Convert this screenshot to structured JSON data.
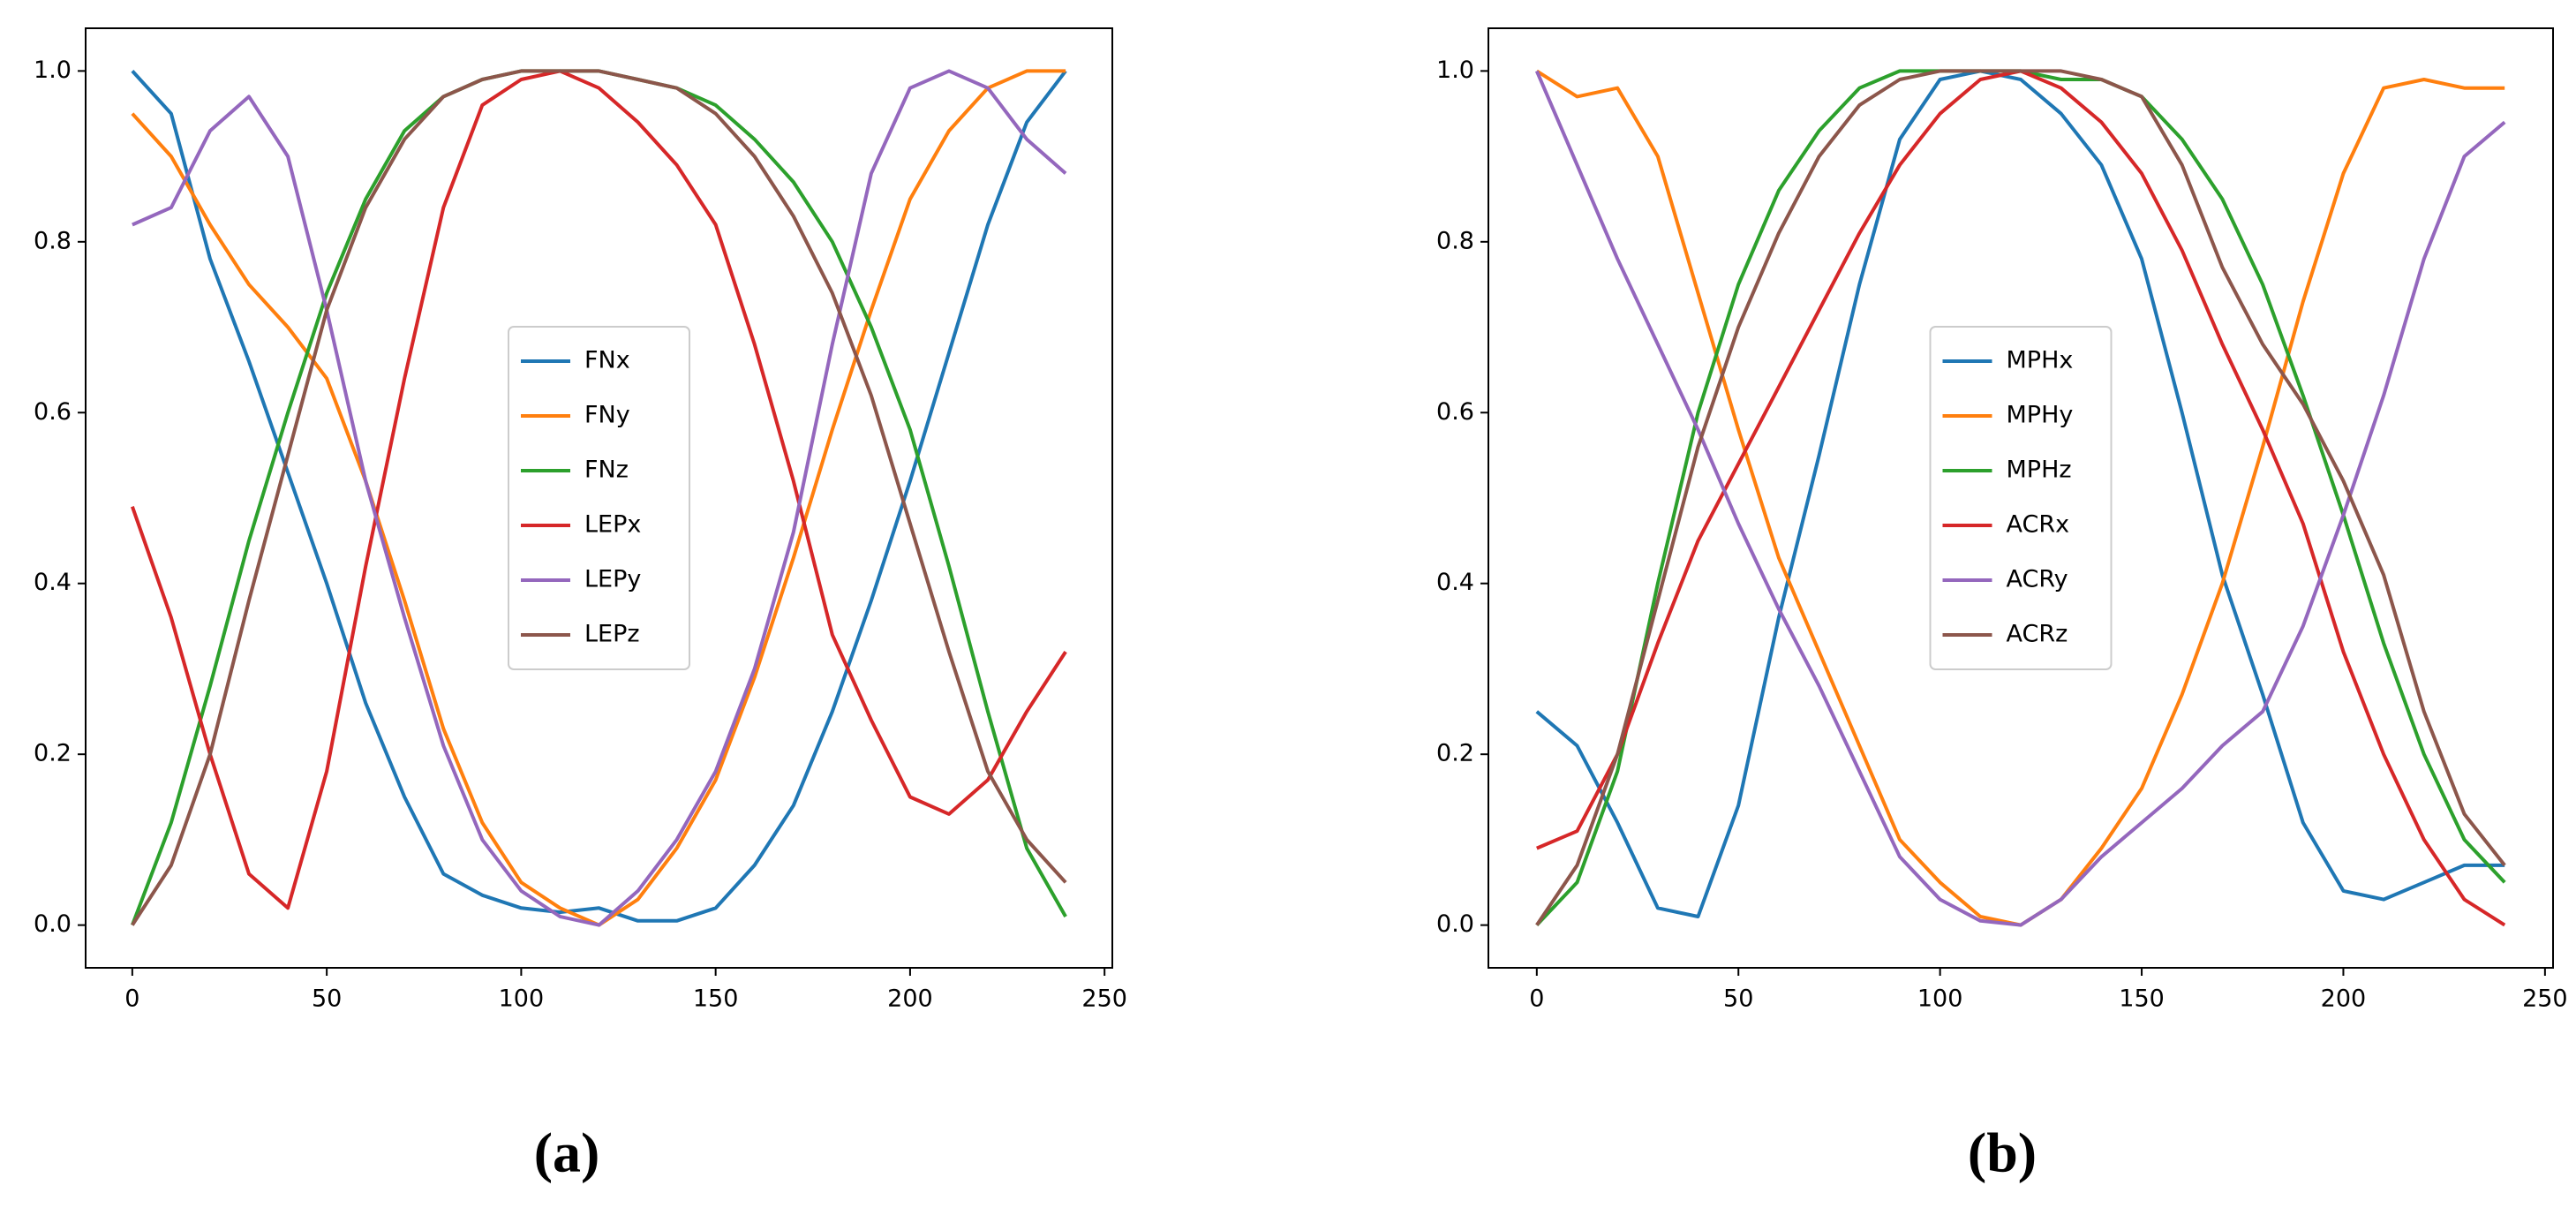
{
  "chart_data": [
    {
      "type": "line",
      "label": "(a)",
      "legend": "center",
      "x": [
        0,
        10,
        20,
        30,
        40,
        50,
        60,
        70,
        80,
        90,
        100,
        110,
        120,
        130,
        140,
        150,
        160,
        170,
        180,
        190,
        200,
        210,
        220,
        230,
        240
      ],
      "xlim": [
        -12,
        252
      ],
      "ylim": [
        -0.05,
        1.05
      ],
      "xticks": [
        0,
        50,
        100,
        150,
        200,
        250
      ],
      "yticks": [
        {
          "value": 0,
          "label": "0.0"
        },
        0.2,
        0.4,
        0.6,
        0.8,
        {
          "value": 1,
          "label": "1.0"
        }
      ],
      "series": [
        {
          "name": "FNx",
          "color": "#1f77b4",
          "values": [
            1.0,
            0.95,
            0.78,
            0.66,
            0.53,
            0.4,
            0.26,
            0.15,
            0.06,
            0.035,
            0.02,
            0.015,
            0.02,
            0.005,
            0.005,
            0.02,
            0.07,
            0.14,
            0.25,
            0.38,
            0.52,
            0.67,
            0.82,
            0.94,
            1.0
          ]
        },
        {
          "name": "FNy",
          "color": "#ff7f0e",
          "values": [
            0.95,
            0.9,
            0.82,
            0.75,
            0.7,
            0.64,
            0.52,
            0.38,
            0.23,
            0.12,
            0.05,
            0.02,
            0.0,
            0.03,
            0.09,
            0.17,
            0.29,
            0.43,
            0.58,
            0.72,
            0.85,
            0.93,
            0.98,
            1.0,
            1.0
          ]
        },
        {
          "name": "FNz",
          "color": "#2ca02c",
          "values": [
            0,
            0.12,
            0.28,
            0.45,
            0.6,
            0.74,
            0.85,
            0.93,
            0.97,
            0.99,
            1.0,
            1.0,
            1.0,
            0.99,
            0.98,
            0.96,
            0.92,
            0.87,
            0.8,
            0.7,
            0.58,
            0.42,
            0.25,
            0.09,
            0.01
          ]
        },
        {
          "name": "LEPx",
          "color": "#d62728",
          "values": [
            0.49,
            0.36,
            0.2,
            0.06,
            0.02,
            0.18,
            0.42,
            0.64,
            0.84,
            0.96,
            0.99,
            1.0,
            0.98,
            0.94,
            0.89,
            0.82,
            0.68,
            0.52,
            0.34,
            0.24,
            0.15,
            0.13,
            0.17,
            0.25,
            0.32
          ]
        },
        {
          "name": "LEPy",
          "color": "#9467bd",
          "values": [
            0.82,
            0.84,
            0.93,
            0.97,
            0.9,
            0.72,
            0.52,
            0.36,
            0.21,
            0.1,
            0.04,
            0.01,
            0.0,
            0.04,
            0.1,
            0.18,
            0.3,
            0.46,
            0.68,
            0.88,
            0.98,
            1.0,
            0.98,
            0.92,
            0.88
          ]
        },
        {
          "name": "LEPz",
          "color": "#8c564b",
          "values": [
            0,
            0.07,
            0.2,
            0.38,
            0.55,
            0.72,
            0.84,
            0.92,
            0.97,
            0.99,
            1.0,
            1.0,
            1.0,
            0.99,
            0.98,
            0.95,
            0.9,
            0.83,
            0.74,
            0.62,
            0.47,
            0.32,
            0.18,
            0.1,
            0.05
          ]
        }
      ]
    },
    {
      "type": "line",
      "label": "(b)",
      "legend": "center",
      "x": [
        0,
        10,
        20,
        30,
        40,
        50,
        60,
        70,
        80,
        90,
        100,
        110,
        120,
        130,
        140,
        150,
        160,
        170,
        180,
        190,
        200,
        210,
        220,
        230,
        240
      ],
      "xlim": [
        -12,
        252
      ],
      "ylim": [
        -0.05,
        1.05
      ],
      "xticks": [
        0,
        50,
        100,
        150,
        200,
        250
      ],
      "yticks": [
        {
          "value": 0,
          "label": "0.0"
        },
        0.2,
        0.4,
        0.6,
        0.8,
        {
          "value": 1,
          "label": "1.0"
        }
      ],
      "series": [
        {
          "name": "MPHx",
          "color": "#1f77b4",
          "values": [
            0.25,
            0.21,
            0.12,
            0.02,
            0.01,
            0.14,
            0.36,
            0.55,
            0.75,
            0.92,
            0.99,
            1.0,
            0.99,
            0.95,
            0.89,
            0.78,
            0.6,
            0.41,
            0.27,
            0.12,
            0.04,
            0.03,
            0.05,
            0.07,
            0.07
          ]
        },
        {
          "name": "MPHy",
          "color": "#ff7f0e",
          "values": [
            1.0,
            0.97,
            0.98,
            0.9,
            0.74,
            0.58,
            0.43,
            0.32,
            0.21,
            0.1,
            0.05,
            0.01,
            0.0,
            0.03,
            0.09,
            0.16,
            0.27,
            0.4,
            0.56,
            0.73,
            0.88,
            0.98,
            0.99,
            0.98,
            0.98
          ]
        },
        {
          "name": "MPHz",
          "color": "#2ca02c",
          "values": [
            0,
            0.05,
            0.18,
            0.4,
            0.6,
            0.75,
            0.86,
            0.93,
            0.98,
            1.0,
            1.0,
            1.0,
            1.0,
            0.99,
            0.99,
            0.97,
            0.92,
            0.85,
            0.75,
            0.62,
            0.48,
            0.33,
            0.2,
            0.1,
            0.05
          ]
        },
        {
          "name": "ACRx",
          "color": "#d62728",
          "values": [
            0.09,
            0.11,
            0.2,
            0.33,
            0.45,
            0.54,
            0.63,
            0.72,
            0.81,
            0.89,
            0.95,
            0.99,
            1.0,
            0.98,
            0.94,
            0.88,
            0.79,
            0.68,
            0.58,
            0.47,
            0.32,
            0.2,
            0.1,
            0.03,
            0.0
          ]
        },
        {
          "name": "ACRy",
          "color": "#9467bd",
          "values": [
            1.0,
            0.89,
            0.78,
            0.68,
            0.58,
            0.47,
            0.37,
            0.28,
            0.18,
            0.08,
            0.03,
            0.005,
            0.0,
            0.03,
            0.08,
            0.12,
            0.16,
            0.21,
            0.25,
            0.35,
            0.48,
            0.62,
            0.78,
            0.9,
            0.94
          ]
        },
        {
          "name": "ACRz",
          "color": "#8c564b",
          "values": [
            0,
            0.07,
            0.2,
            0.38,
            0.56,
            0.7,
            0.81,
            0.9,
            0.96,
            0.99,
            1.0,
            1.0,
            1.0,
            1.0,
            0.99,
            0.97,
            0.89,
            0.77,
            0.68,
            0.61,
            0.52,
            0.41,
            0.25,
            0.13,
            0.07
          ]
        }
      ]
    }
  ]
}
